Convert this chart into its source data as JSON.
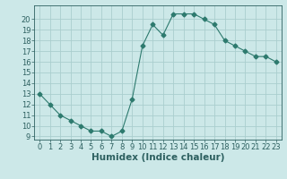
{
  "x": [
    0,
    1,
    2,
    3,
    4,
    5,
    6,
    7,
    8,
    9,
    10,
    11,
    12,
    13,
    14,
    15,
    16,
    17,
    18,
    19,
    20,
    21,
    22,
    23
  ],
  "y": [
    13,
    12,
    11,
    10.5,
    10,
    9.5,
    9.5,
    9,
    9.5,
    12.5,
    17.5,
    19.5,
    18.5,
    20.5,
    20.5,
    20.5,
    20,
    19.5,
    18,
    17.5,
    17,
    16.5,
    16.5,
    16
  ],
  "xlabel": "Humidex (Indice chaleur)",
  "ylim": [
    9,
    21
  ],
  "xlim": [
    -0.5,
    23.5
  ],
  "yticks": [
    9,
    10,
    11,
    12,
    13,
    14,
    15,
    16,
    17,
    18,
    19,
    20
  ],
  "xticks": [
    0,
    1,
    2,
    3,
    4,
    5,
    6,
    7,
    8,
    9,
    10,
    11,
    12,
    13,
    14,
    15,
    16,
    17,
    18,
    19,
    20,
    21,
    22,
    23
  ],
  "line_color": "#2d7a6e",
  "marker": "D",
  "marker_size": 2.5,
  "bg_color": "#cce8e8",
  "grid_color": "#aacece",
  "xlabel_fontsize": 7.5,
  "tick_fontsize": 6,
  "fig_width": 3.2,
  "fig_height": 2.0
}
